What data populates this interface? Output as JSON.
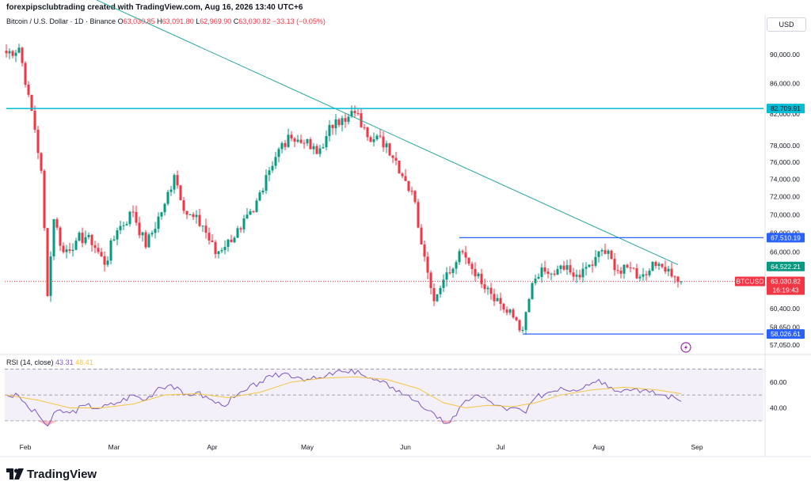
{
  "header": {
    "credit": "forexpipsclubtrading created with TradingView.com, Aug 16, 2026 13:40 UTC+6",
    "symbol_label": "Bitcoin / U.S. Dollar · 1D · Binance",
    "open_label": "O",
    "open_value": "63,030.85",
    "high_label": "H",
    "high_value": "63,091.80",
    "low_label": "L",
    "low_value": "62,969.90",
    "close_label": "C",
    "close_value": "63,030.82",
    "change_value": "−33.13 (−0.05%)"
  },
  "currency_button": "USD",
  "brand": {
    "name": "TradingView"
  },
  "colors": {
    "up": "#089981",
    "down": "#f23645",
    "trendline": "#26a69a",
    "resistance_line": "#00bcd4",
    "level_lines": "#2962ff",
    "rsi_line": "#7e57c2",
    "rsi_ma": "#f5c542",
    "rsi_band": "#7e57c2"
  },
  "chart_data": [
    {
      "type": "candlestick",
      "title": "Bitcoin / U.S. Dollar · 1D · Binance",
      "xaxis_ticks": [
        "Feb",
        "Mar",
        "Apr",
        "May",
        "Jun",
        "Jul",
        "Aug",
        "Sep"
      ],
      "yaxis_ticks": [
        "90,000.00",
        "86,000.00",
        "82,000.00",
        "78,000.00",
        "76,000.00",
        "74,000.00",
        "72,000.00",
        "70,000.00",
        "68,000.00",
        "66,000.00",
        "60,400.00",
        "58,650.00",
        "57,050.00"
      ],
      "ylim": [
        56400,
        92400
      ],
      "scale": "log",
      "price_labels": [
        {
          "text": "82,709.91",
          "value": 82709.91,
          "style": "cyan"
        },
        {
          "text": "67,510.19",
          "value": 67510.19,
          "style": "blue"
        },
        {
          "text": "64,522.21",
          "value": 64522.21,
          "style": "green"
        },
        {
          "text": "BTCUSD",
          "value": 63030.82,
          "style": "red-tag"
        },
        {
          "text": "63,030.82",
          "value": 63030.82,
          "style": "red"
        },
        {
          "text": "16:19:43",
          "value": 63030.82,
          "style": "red-sub"
        },
        {
          "text": "58,026.61",
          "value": 58026.61,
          "style": "blue"
        }
      ],
      "horizontal_levels": [
        {
          "value": 82709.91,
          "from_day": 0,
          "to_day": 240,
          "style": "resistance"
        },
        {
          "value": 67510.19,
          "from_day": 143,
          "to_day": 240,
          "style": "level"
        },
        {
          "value": 58026.61,
          "from_day": 163,
          "to_day": 240,
          "style": "level"
        }
      ],
      "trendline": {
        "from_day": 20,
        "from_value": 100000,
        "to_day": 212,
        "to_value": 64700
      },
      "keypoints": [
        {
          "day": 0,
          "close": 90200
        },
        {
          "day": 4,
          "close": 91000
        },
        {
          "day": 7,
          "close": 84500
        },
        {
          "day": 9,
          "close": 80000
        },
        {
          "day": 11,
          "close": 75000
        },
        {
          "day": 13,
          "close": 61600
        },
        {
          "day": 15,
          "close": 69500
        },
        {
          "day": 18,
          "close": 66000
        },
        {
          "day": 22,
          "close": 67200
        },
        {
          "day": 26,
          "close": 67800
        },
        {
          "day": 31,
          "close": 64700
        },
        {
          "day": 35,
          "close": 68300
        },
        {
          "day": 40,
          "close": 70300
        },
        {
          "day": 44,
          "close": 66500
        },
        {
          "day": 50,
          "close": 71200
        },
        {
          "day": 53,
          "close": 74500
        },
        {
          "day": 57,
          "close": 70000
        },
        {
          "day": 62,
          "close": 68800
        },
        {
          "day": 66,
          "close": 65800
        },
        {
          "day": 70,
          "close": 67300
        },
        {
          "day": 74,
          "close": 68400
        },
        {
          "day": 78,
          "close": 70300
        },
        {
          "day": 82,
          "close": 74500
        },
        {
          "day": 86,
          "close": 77600
        },
        {
          "day": 90,
          "close": 78900
        },
        {
          "day": 94,
          "close": 78300
        },
        {
          "day": 98,
          "close": 77000
        },
        {
          "day": 101,
          "close": 79200
        },
        {
          "day": 104,
          "close": 81300
        },
        {
          "day": 107,
          "close": 81000
        },
        {
          "day": 110,
          "close": 82100
        },
        {
          "day": 113,
          "close": 80300
        },
        {
          "day": 116,
          "close": 78800
        },
        {
          "day": 120,
          "close": 78300
        },
        {
          "day": 123,
          "close": 76200
        },
        {
          "day": 126,
          "close": 73800
        },
        {
          "day": 129,
          "close": 71400
        },
        {
          "day": 131,
          "close": 66800
        },
        {
          "day": 133,
          "close": 63900
        },
        {
          "day": 135,
          "close": 61100
        },
        {
          "day": 138,
          "close": 63200
        },
        {
          "day": 141,
          "close": 64300
        },
        {
          "day": 143,
          "close": 66100
        },
        {
          "day": 146,
          "close": 64800
        },
        {
          "day": 149,
          "close": 63800
        },
        {
          "day": 152,
          "close": 62400
        },
        {
          "day": 155,
          "close": 61400
        },
        {
          "day": 158,
          "close": 60000
        },
        {
          "day": 161,
          "close": 59300
        },
        {
          "day": 163,
          "close": 58400
        },
        {
          "day": 165,
          "close": 61300
        },
        {
          "day": 167,
          "close": 63300
        },
        {
          "day": 170,
          "close": 64000
        },
        {
          "day": 173,
          "close": 63700
        },
        {
          "day": 176,
          "close": 64200
        },
        {
          "day": 179,
          "close": 63500
        },
        {
          "day": 182,
          "close": 64300
        },
        {
          "day": 185,
          "close": 64600
        },
        {
          "day": 188,
          "close": 66200
        },
        {
          "day": 191,
          "close": 65300
        },
        {
          "day": 194,
          "close": 63800
        },
        {
          "day": 197,
          "close": 64400
        },
        {
          "day": 200,
          "close": 63500
        },
        {
          "day": 203,
          "close": 64100
        },
        {
          "day": 206,
          "close": 64800
        },
        {
          "day": 209,
          "close": 64300
        },
        {
          "day": 211,
          "close": 63500
        },
        {
          "day": 213,
          "close": 63031
        }
      ]
    },
    {
      "type": "line",
      "title": "RSI (14, close)",
      "values_shown": [
        "43.31",
        "48.41"
      ],
      "yaxis_ticks": [
        "60.00",
        "40.00"
      ],
      "ylim": [
        22,
        77
      ],
      "bands": {
        "upper": 70,
        "middle": 50,
        "lower": 30
      },
      "series": [
        {
          "name": "RSI",
          "points": [
            [
              0,
              50
            ],
            [
              4,
              49
            ],
            [
              7,
              40
            ],
            [
              10,
              35
            ],
            [
              13,
              26
            ],
            [
              16,
              38
            ],
            [
              20,
              36
            ],
            [
              25,
              42
            ],
            [
              30,
              40
            ],
            [
              35,
              44
            ],
            [
              40,
              50
            ],
            [
              44,
              46
            ],
            [
              48,
              56
            ],
            [
              52,
              58
            ],
            [
              56,
              50
            ],
            [
              60,
              52
            ],
            [
              64,
              47
            ],
            [
              68,
              42
            ],
            [
              72,
              48
            ],
            [
              76,
              54
            ],
            [
              80,
              60
            ],
            [
              84,
              64
            ],
            [
              88,
              67
            ],
            [
              92,
              64
            ],
            [
              96,
              62
            ],
            [
              100,
              63
            ],
            [
              104,
              68
            ],
            [
              108,
              67
            ],
            [
              111,
              69
            ],
            [
              114,
              63
            ],
            [
              118,
              60
            ],
            [
              122,
              56
            ],
            [
              126,
              50
            ],
            [
              130,
              45
            ],
            [
              133,
              38
            ],
            [
              136,
              32
            ],
            [
              139,
              28
            ],
            [
              142,
              34
            ],
            [
              145,
              46
            ],
            [
              148,
              50
            ],
            [
              152,
              46
            ],
            [
              155,
              42
            ],
            [
              158,
              38
            ],
            [
              161,
              40
            ],
            [
              164,
              36
            ],
            [
              167,
              48
            ],
            [
              171,
              52
            ],
            [
              175,
              56
            ],
            [
              179,
              54
            ],
            [
              183,
              58
            ],
            [
              187,
              62
            ],
            [
              191,
              56
            ],
            [
              195,
              54
            ],
            [
              199,
              55
            ],
            [
              203,
              52
            ],
            [
              207,
              50
            ],
            [
              211,
              48
            ],
            [
              213,
              45
            ]
          ]
        },
        {
          "name": "RSI MA",
          "points": [
            [
              0,
              50
            ],
            [
              10,
              46
            ],
            [
              20,
              40
            ],
            [
              30,
              40
            ],
            [
              40,
              43
            ],
            [
              50,
              50
            ],
            [
              60,
              51
            ],
            [
              70,
              48
            ],
            [
              80,
              52
            ],
            [
              90,
              60
            ],
            [
              100,
              63
            ],
            [
              110,
              64
            ],
            [
              120,
              62
            ],
            [
              130,
              55
            ],
            [
              138,
              44
            ],
            [
              145,
              40
            ],
            [
              152,
              42
            ],
            [
              160,
              41
            ],
            [
              167,
              44
            ],
            [
              175,
              50
            ],
            [
              185,
              54
            ],
            [
              195,
              56
            ],
            [
              205,
              54
            ],
            [
              213,
              51
            ]
          ]
        }
      ]
    }
  ]
}
